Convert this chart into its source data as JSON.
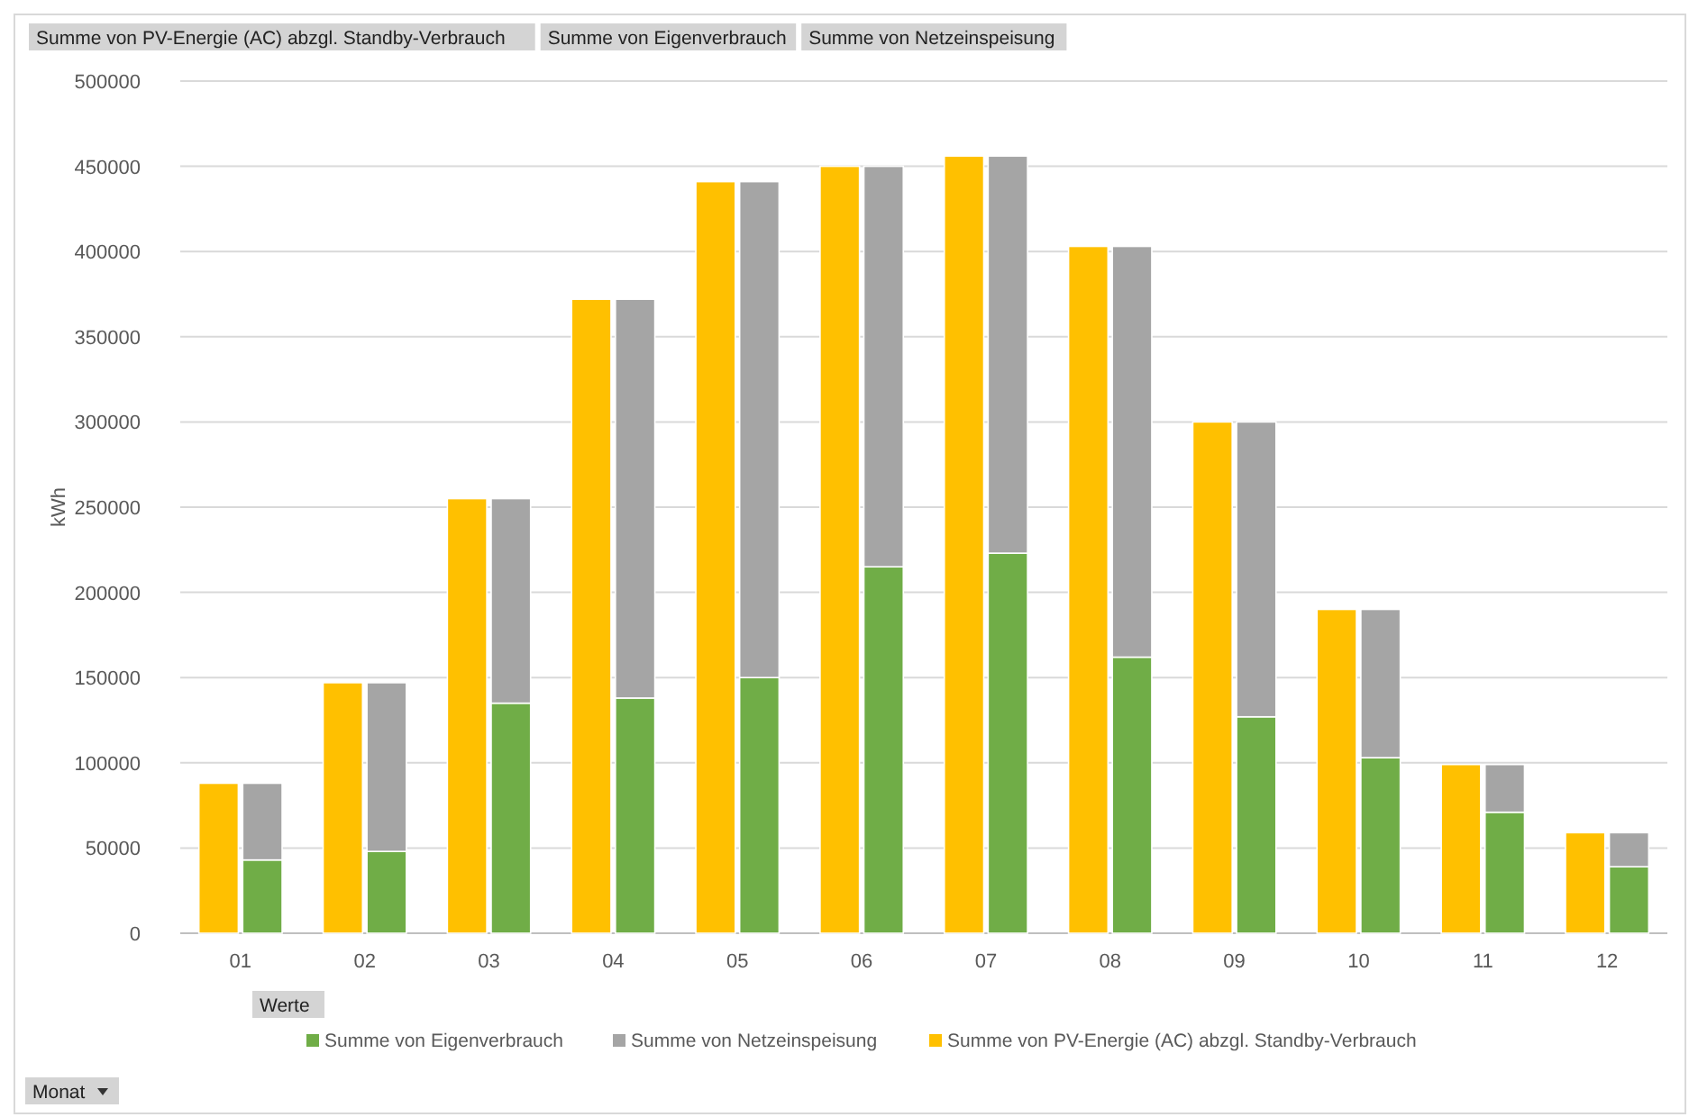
{
  "chart_data": [
    {
      "type": "bar",
      "ylabel": "kWh",
      "legend_title": "Werte",
      "legend": "bottom",
      "grid": "y",
      "annotations": [
        "Summe  von PV-Energie (AC) abzgl. Standby-Verbrauch",
        "Summe  von Eigenverbrauch",
        "Summe  von Netzeinspeisung",
        "Monat"
      ],
      "categories": [
        "01",
        "02",
        "03",
        "04",
        "05",
        "06",
        "07",
        "08",
        "09",
        "10",
        "11",
        "12"
      ],
      "ylim": [
        0,
        500000
      ],
      "yticks": [
        0,
        50000,
        100000,
        150000,
        200000,
        250000,
        300000,
        350000,
        400000,
        450000,
        500000
      ],
      "series": [
        {
          "name": "Summe von PV-Energie (AC) abzgl. Standby-Verbrauch",
          "color": "#ffc000",
          "values": [
            88000,
            147000,
            255000,
            372000,
            441000,
            450000,
            456000,
            403000,
            300000,
            190000,
            99000,
            59000
          ]
        }
      ]
    },
    {
      "type": "bar",
      "stacked": true,
      "tick_labels": false,
      "legend": "bottom",
      "categories": [
        "01",
        "02",
        "03",
        "04",
        "05",
        "06",
        "07",
        "08",
        "09",
        "10",
        "11",
        "12"
      ],
      "ylim": [
        0,
        500000
      ],
      "series": [
        {
          "name": "Summe von Eigenverbrauch",
          "color": "#70ad47",
          "values": [
            43000,
            48000,
            135000,
            138000,
            150000,
            215000,
            223000,
            162000,
            127000,
            103000,
            71000,
            39000
          ]
        },
        {
          "name": "Summe von Netzeinspeisung",
          "color": "#a5a5a5",
          "values": [
            45000,
            99000,
            120000,
            234000,
            291000,
            235000,
            233000,
            241000,
            173000,
            87000,
            28000,
            20000
          ]
        }
      ]
    }
  ]
}
